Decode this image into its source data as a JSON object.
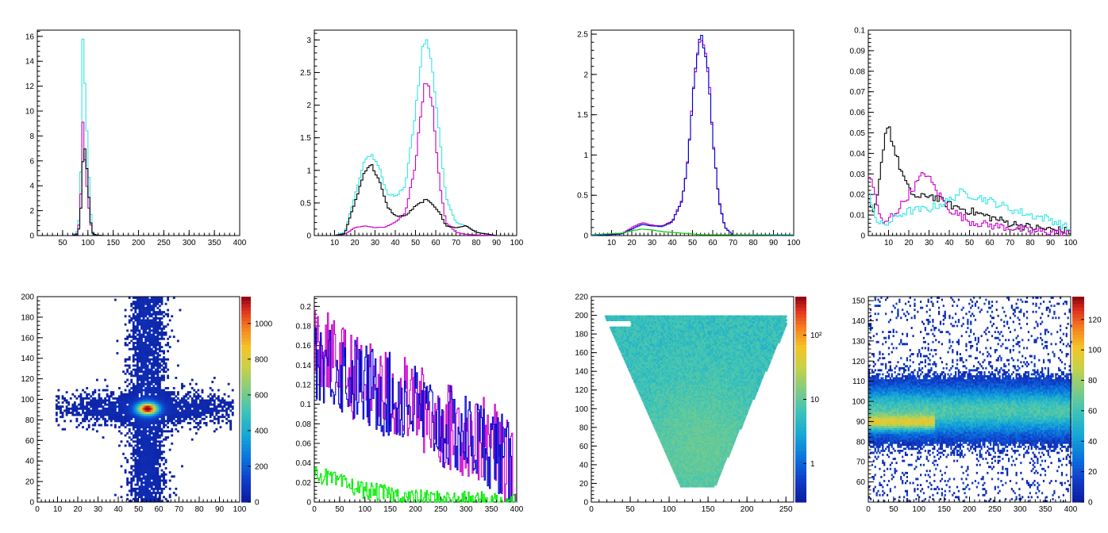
{
  "chart_data": [
    {
      "type": "line",
      "xlim": [
        0,
        400
      ],
      "ylim": [
        0,
        16.5
      ],
      "x_ticks": [
        50,
        100,
        150,
        200,
        250,
        300,
        350,
        400
      ],
      "y_ticks": [
        0,
        2,
        4,
        6,
        8,
        10,
        12,
        14,
        16
      ],
      "series": [
        {
          "color": "#33e6e6",
          "x": [
            70,
            80,
            85,
            90,
            95,
            100,
            105,
            110,
            115,
            130,
            400
          ],
          "y": [
            0,
            0.4,
            2.5,
            15.6,
            11.5,
            6.5,
            2.0,
            0.3,
            0.05,
            0,
            0
          ]
        },
        {
          "color": "#cc00cc",
          "x": [
            70,
            80,
            85,
            90,
            95,
            100,
            105,
            110,
            115,
            130,
            400
          ],
          "y": [
            0,
            0.2,
            1.8,
            9.2,
            5.5,
            3.0,
            1.0,
            0.2,
            0.05,
            0,
            0
          ]
        },
        {
          "color": "#000000",
          "x": [
            70,
            80,
            85,
            90,
            95,
            100,
            105,
            110,
            115,
            130,
            400
          ],
          "y": [
            0,
            0.1,
            1.2,
            6.0,
            7.0,
            4.2,
            1.2,
            0.2,
            0.05,
            0,
            0
          ]
        }
      ]
    },
    {
      "type": "line",
      "xlim": [
        0,
        100
      ],
      "ylim": [
        0,
        3.15
      ],
      "x_ticks": [
        10,
        20,
        30,
        40,
        50,
        60,
        70,
        80,
        90,
        100
      ],
      "y_ticks": [
        0,
        0.5,
        1,
        1.5,
        2,
        2.5,
        3
      ],
      "y_tick_labels": [
        "0",
        "0.5",
        "1",
        "1.5",
        "2",
        "2.5",
        "3"
      ],
      "series": [
        {
          "color": "#33e6e6",
          "x": [
            0,
            10,
            15,
            20,
            25,
            28,
            32,
            36,
            40,
            45,
            50,
            53,
            55,
            58,
            62,
            65,
            70,
            75,
            80,
            90,
            100
          ],
          "y": [
            0,
            0,
            0.05,
            0.6,
            1.15,
            1.25,
            1.05,
            0.65,
            0.6,
            0.75,
            1.9,
            2.8,
            3.0,
            2.7,
            1.5,
            0.6,
            0.2,
            0.15,
            0.05,
            0,
            0
          ]
        },
        {
          "color": "#cc00cc",
          "x": [
            0,
            10,
            15,
            20,
            25,
            30,
            35,
            40,
            45,
            50,
            53,
            55,
            58,
            62,
            65,
            70,
            75,
            80,
            90,
            100
          ],
          "y": [
            0,
            0,
            0.02,
            0.12,
            0.15,
            0.12,
            0.13,
            0.2,
            0.35,
            1.1,
            2.0,
            2.4,
            2.1,
            0.8,
            0.2,
            0.05,
            0.02,
            0.01,
            0,
            0
          ]
        },
        {
          "color": "#000000",
          "x": [
            0,
            10,
            15,
            20,
            25,
            28,
            32,
            36,
            40,
            45,
            50,
            55,
            58,
            62,
            65,
            70,
            75,
            80,
            90,
            100
          ],
          "y": [
            0,
            0,
            0.03,
            0.5,
            1.0,
            1.1,
            0.85,
            0.45,
            0.3,
            0.3,
            0.45,
            0.55,
            0.5,
            0.35,
            0.15,
            0.12,
            0.15,
            0.05,
            0,
            0
          ]
        }
      ]
    },
    {
      "type": "line",
      "xlim": [
        0,
        100
      ],
      "ylim": [
        0,
        2.55
      ],
      "x_ticks": [
        10,
        20,
        30,
        40,
        50,
        60,
        70,
        80,
        90,
        100
      ],
      "y_ticks": [
        0,
        0.5,
        1,
        1.5,
        2,
        2.5
      ],
      "y_tick_labels": [
        "0",
        "0.5",
        "1",
        "1.5",
        "2",
        "2.5"
      ],
      "series": [
        {
          "color": "#cc00cc",
          "x": [
            0,
            15,
            20,
            25,
            30,
            35,
            40,
            45,
            48,
            50,
            53,
            55,
            58,
            60,
            63,
            66,
            70,
            100
          ],
          "y": [
            0,
            0.02,
            0.1,
            0.16,
            0.13,
            0.12,
            0.18,
            0.45,
            1.0,
            1.7,
            2.4,
            2.45,
            2.0,
            1.2,
            0.45,
            0.1,
            0.01,
            0
          ]
        },
        {
          "color": "#0000cc",
          "x": [
            0,
            15,
            20,
            25,
            30,
            35,
            40,
            45,
            48,
            50,
            53,
            55,
            58,
            60,
            63,
            66,
            70,
            100
          ],
          "y": [
            0,
            0.02,
            0.08,
            0.14,
            0.12,
            0.11,
            0.17,
            0.45,
            1.0,
            1.7,
            2.4,
            2.45,
            2.0,
            1.2,
            0.45,
            0.1,
            0.01,
            0
          ]
        },
        {
          "color": "#00cc00",
          "x": [
            0,
            15,
            20,
            25,
            30,
            35,
            40,
            45,
            50,
            55,
            60,
            100
          ],
          "y": [
            0.01,
            0.03,
            0.06,
            0.08,
            0.07,
            0.05,
            0.04,
            0.03,
            0.02,
            0.01,
            0.01,
            0.01
          ]
        }
      ]
    },
    {
      "type": "line",
      "xlim": [
        0,
        100
      ],
      "ylim": [
        0,
        0.1
      ],
      "x_ticks": [
        10,
        20,
        30,
        40,
        50,
        60,
        70,
        80,
        90,
        100
      ],
      "y_ticks": [
        0,
        0.01,
        0.02,
        0.03,
        0.04,
        0.05,
        0.06,
        0.07,
        0.08,
        0.09,
        0.1
      ],
      "y_tick_labels": [
        "0",
        "0.01",
        "0.02",
        "0.03",
        "0.04",
        "0.05",
        "0.06",
        "0.07",
        "0.08",
        "0.09",
        "0.1"
      ],
      "series": [
        {
          "color": "#000000",
          "x": [
            0,
            2,
            4,
            6,
            8,
            10,
            12,
            15,
            20,
            25,
            30,
            40,
            50,
            60,
            70,
            80,
            90,
            100
          ],
          "y": [
            0.018,
            0.01,
            0.015,
            0.03,
            0.048,
            0.055,
            0.045,
            0.035,
            0.022,
            0.018,
            0.02,
            0.015,
            0.012,
            0.009,
            0.006,
            0.004,
            0.003,
            0.002
          ]
        },
        {
          "color": "#cc00cc",
          "x": [
            0,
            2,
            4,
            6,
            8,
            10,
            15,
            20,
            25,
            28,
            30,
            35,
            40,
            45,
            50,
            60,
            70,
            80,
            90,
            100
          ],
          "y": [
            0.03,
            0.025,
            0.018,
            0.008,
            0.005,
            0.008,
            0.013,
            0.02,
            0.027,
            0.031,
            0.028,
            0.02,
            0.013,
            0.01,
            0.007,
            0.005,
            0.004,
            0.002,
            0.002,
            0.001
          ]
        },
        {
          "color": "#33e6e6",
          "x": [
            0,
            2,
            5,
            10,
            15,
            20,
            30,
            40,
            45,
            50,
            60,
            70,
            80,
            90,
            100
          ],
          "y": [
            0.022,
            0.015,
            0.005,
            0.006,
            0.01,
            0.012,
            0.013,
            0.017,
            0.021,
            0.02,
            0.017,
            0.013,
            0.01,
            0.008,
            0.003
          ]
        }
      ]
    },
    {
      "type": "heatmap",
      "xlim": [
        0,
        100
      ],
      "ylim": [
        0,
        200
      ],
      "x_ticks": [
        0,
        10,
        20,
        30,
        40,
        50,
        60,
        70,
        80,
        90,
        100
      ],
      "y_ticks": [
        0,
        20,
        40,
        60,
        80,
        100,
        120,
        140,
        160,
        180,
        200
      ],
      "zlim": [
        0,
        1150
      ],
      "colorbar_ticks": [
        0,
        200,
        400,
        600,
        800,
        1000
      ],
      "log_z": false
    },
    {
      "type": "line",
      "xlim": [
        0,
        400
      ],
      "ylim": [
        0,
        0.21
      ],
      "x_ticks": [
        0,
        50,
        100,
        150,
        200,
        250,
        300,
        350,
        400
      ],
      "y_ticks": [
        0,
        0.02,
        0.04,
        0.06,
        0.08,
        0.1,
        0.12,
        0.14,
        0.16,
        0.18,
        0.2
      ],
      "y_tick_labels": [
        "0",
        "0.02",
        "0.04",
        "0.06",
        "0.08",
        "0.1",
        "0.12",
        "0.14",
        "0.16",
        "0.18",
        "0.2"
      ],
      "series": [
        {
          "color": "#cc00cc",
          "x": [
            0,
            50,
            100,
            150,
            200,
            250,
            300,
            350,
            370,
            380,
            390,
            395
          ],
          "y": [
            0.16,
            0.14,
            0.12,
            0.11,
            0.1,
            0.08,
            0.07,
            0.06,
            0.05,
            0.04,
            0.03,
            0.01
          ]
        },
        {
          "color": "#0000cc",
          "x": [
            0,
            50,
            100,
            150,
            200,
            250,
            300,
            350,
            370,
            380,
            390,
            395
          ],
          "y": [
            0.15,
            0.135,
            0.118,
            0.108,
            0.098,
            0.078,
            0.068,
            0.058,
            0.048,
            0.04,
            0.03,
            0.01
          ]
        },
        {
          "color": "#00ee00",
          "x": [
            0,
            50,
            100,
            150,
            200,
            250,
            300,
            350,
            395
          ],
          "y": [
            0.03,
            0.02,
            0.012,
            0.008,
            0.004,
            0.003,
            0.002,
            0.002,
            0.001
          ]
        }
      ]
    },
    {
      "type": "heatmap",
      "xlim": [
        0,
        260
      ],
      "ylim": [
        0,
        220
      ],
      "x_ticks": [
        0,
        50,
        100,
        150,
        200,
        250
      ],
      "y_ticks": [
        0,
        20,
        40,
        60,
        80,
        100,
        120,
        140,
        160,
        180,
        200,
        220
      ],
      "zlim": [
        0.25,
        400
      ],
      "colorbar_ticks": [
        1,
        10,
        100
      ],
      "colorbar_tick_labels": [
        "1",
        "10",
        "10²"
      ],
      "log_z": true
    },
    {
      "type": "heatmap",
      "xlim": [
        0,
        400
      ],
      "ylim": [
        50,
        152
      ],
      "x_ticks": [
        0,
        50,
        100,
        150,
        200,
        250,
        300,
        350,
        400
      ],
      "y_ticks": [
        60,
        70,
        80,
        90,
        100,
        110,
        120,
        130,
        140,
        150
      ],
      "zlim": [
        0,
        135
      ],
      "colorbar_ticks": [
        0,
        20,
        40,
        60,
        80,
        100,
        120
      ],
      "log_z": false
    }
  ]
}
